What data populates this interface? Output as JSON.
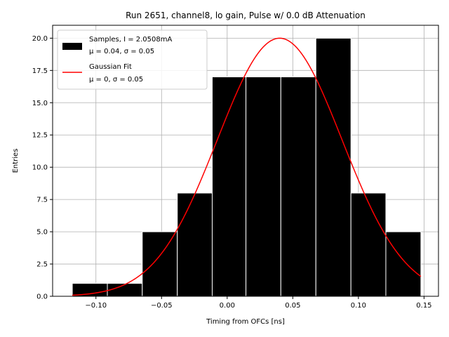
{
  "chart_data": {
    "type": "bar",
    "title": "Run 2651, channel8, lo gain, Pulse w/ 0.0 dB Attenuation",
    "xlabel": "Timing from OFCs [ns]",
    "ylabel": "Entries",
    "xlim": [
      -0.133,
      0.161
    ],
    "ylim": [
      0,
      21
    ],
    "xticks": [
      -0.1,
      -0.05,
      0.0,
      0.05,
      0.1,
      0.15
    ],
    "xtick_labels": [
      "−0.10",
      "−0.05",
      "0.00",
      "0.05",
      "0.10",
      "0.15"
    ],
    "yticks": [
      0,
      2.5,
      5,
      7.5,
      10,
      12.5,
      15,
      17.5,
      20
    ],
    "ytick_labels": [
      "0.0",
      "2.5",
      "5.0",
      "7.5",
      "10.0",
      "12.5",
      "15.0",
      "17.5",
      "20.0"
    ],
    "grid": true,
    "legend_position": "top-left",
    "histogram": {
      "name": "Samples, I = 2.0508mA",
      "stats_line": "μ = 0.04, σ = 0.05",
      "color": "#000000",
      "edge_color": "#ffffff",
      "bins": [
        {
          "x0": -0.118,
          "x1": -0.0913,
          "count": 1
        },
        {
          "x0": -0.0913,
          "x1": -0.0647,
          "count": 1
        },
        {
          "x0": -0.0647,
          "x1": -0.038,
          "count": 5
        },
        {
          "x0": -0.038,
          "x1": -0.0114,
          "count": 8
        },
        {
          "x0": -0.0114,
          "x1": 0.0143,
          "count": 17
        },
        {
          "x0": 0.0143,
          "x1": 0.0409,
          "count": 17
        },
        {
          "x0": 0.0409,
          "x1": 0.0676,
          "count": 17
        },
        {
          "x0": 0.0676,
          "x1": 0.0943,
          "count": 20
        },
        {
          "x0": 0.0943,
          "x1": 0.1209,
          "count": 8
        },
        {
          "x0": 0.1209,
          "x1": 0.1476,
          "count": 5
        }
      ]
    },
    "fit": {
      "name": "Gaussian Fit",
      "stats_line": "μ = 0, σ = 0.05",
      "color": "#ff0000",
      "amplitude": 20,
      "mean": 0.04,
      "sigma": 0.0475,
      "x_range": [
        -0.118,
        0.1476
      ]
    }
  }
}
